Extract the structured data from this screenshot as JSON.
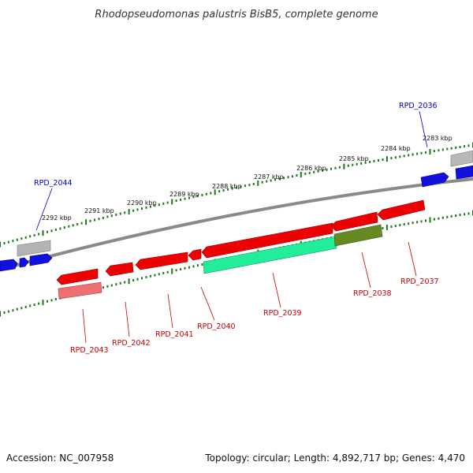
{
  "title": "Rhodopseudomonas palustris BisB5, complete genome",
  "footer": {
    "accession": "Accession: NC_007958",
    "summary": "Topology: circular; Length: 4,892,717 bp; Genes: 4,470"
  },
  "colors": {
    "backbone": "#8a8a8a",
    "tick": "#1a7a1a",
    "red": "#ee0000",
    "blue": "#1010e0",
    "grey": "#b0b0b0",
    "cyan": "#22ee99",
    "olive": "#668a22",
    "label_red": "#cc0000",
    "label_blue": "#0000cc"
  },
  "kbp_labels": [
    "2283 kbp",
    "2284 kbp",
    "2285 kbp",
    "2286 kbp",
    "2287 kbp",
    "2288 kbp",
    "2289 kbp",
    "2290 kbp",
    "2291 kbp",
    "2292 kbp"
  ],
  "gene_labels": {
    "rpd_2036": "RPD_2036",
    "rpd_2044": "RPD_2044",
    "rpd_2037": "RPD_2037",
    "rpd_2038": "RPD_2038",
    "rpd_2039": "RPD_2039",
    "rpd_2040": "RPD_2040",
    "rpd_2041": "RPD_2041",
    "rpd_2042": "RPD_2042",
    "rpd_2043": "RPD_2043"
  }
}
